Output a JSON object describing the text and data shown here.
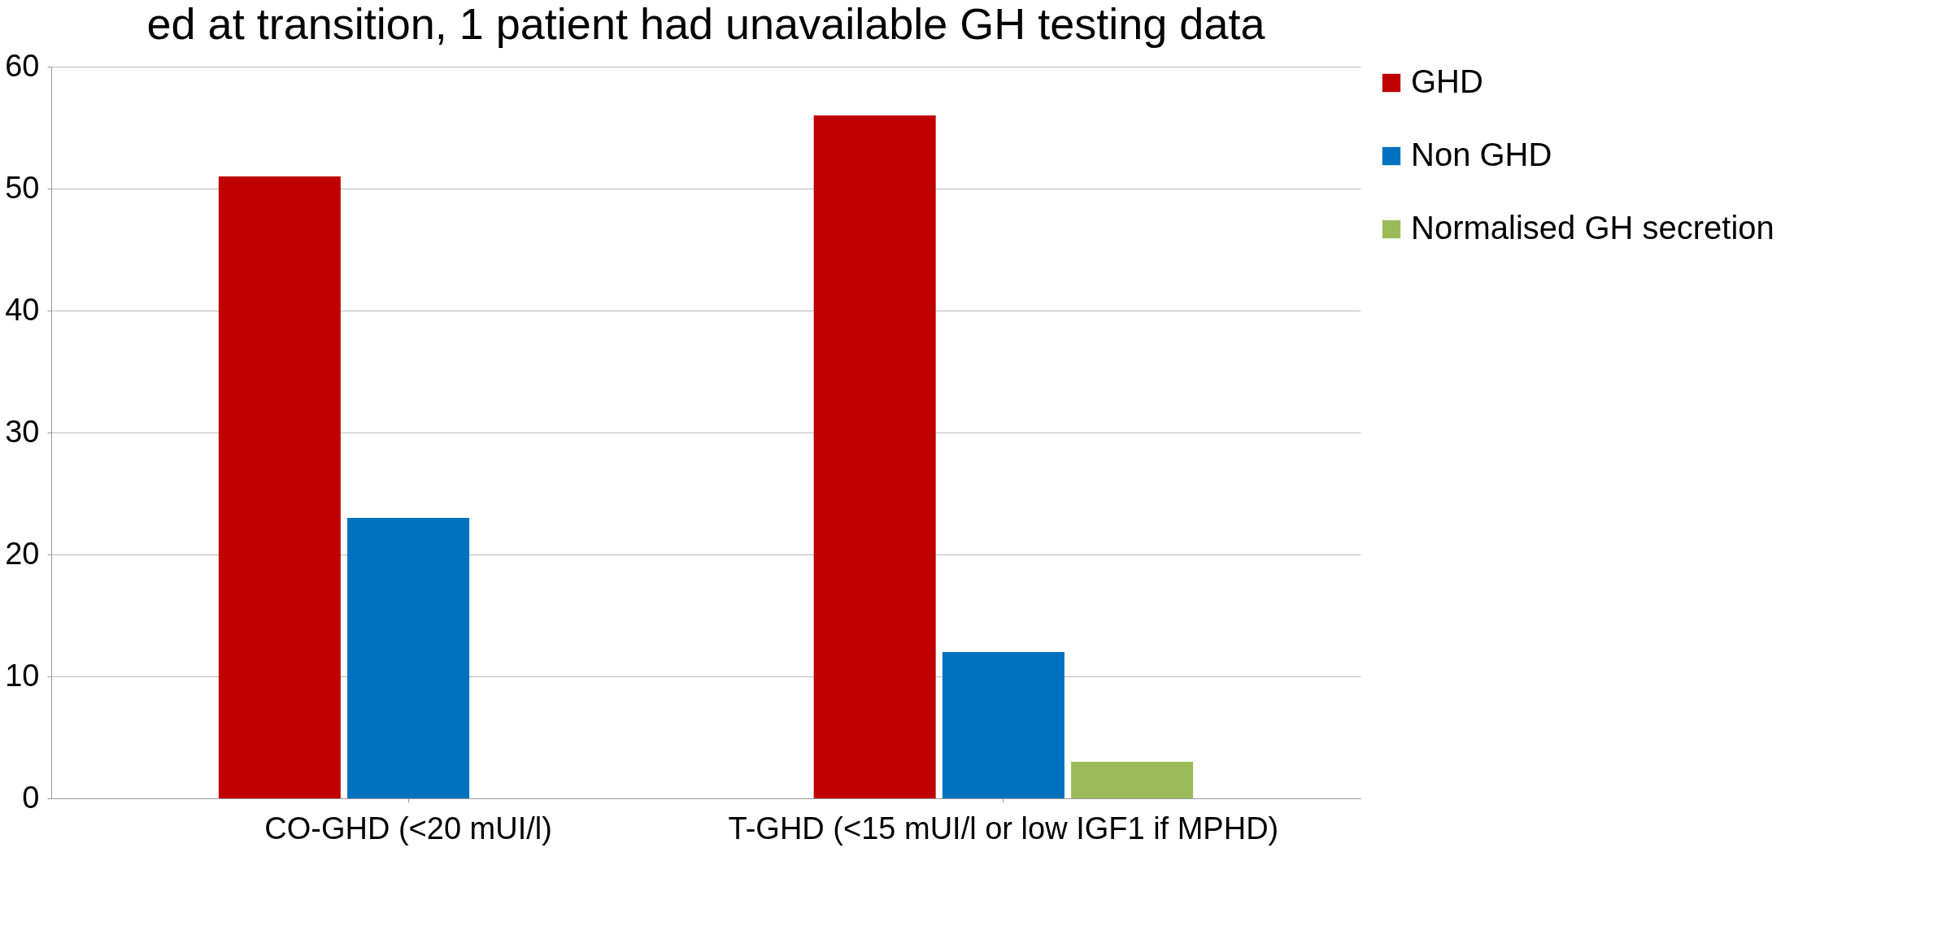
{
  "chart_data": {
    "type": "bar",
    "title": "ed at transition, 1 patient had unavailable GH testing data",
    "categories": [
      "CO-GHD (<20 mUI/l)",
      "T-GHD (<15 mUI/l or low IGF1 if MPHD)"
    ],
    "series": [
      {
        "name": "GHD",
        "color": "#c00000",
        "values": [
          51,
          56
        ]
      },
      {
        "name": "Non GHD",
        "color": "#0070c0",
        "values": [
          23,
          12
        ]
      },
      {
        "name": "Normalised GH secretion",
        "color": "#9bbb59",
        "values": [
          null,
          3
        ]
      }
    ],
    "ylim": [
      0,
      60
    ],
    "yticks": [
      0,
      10,
      20,
      30,
      40,
      50,
      60
    ],
    "grid": "y",
    "legend": "right"
  }
}
